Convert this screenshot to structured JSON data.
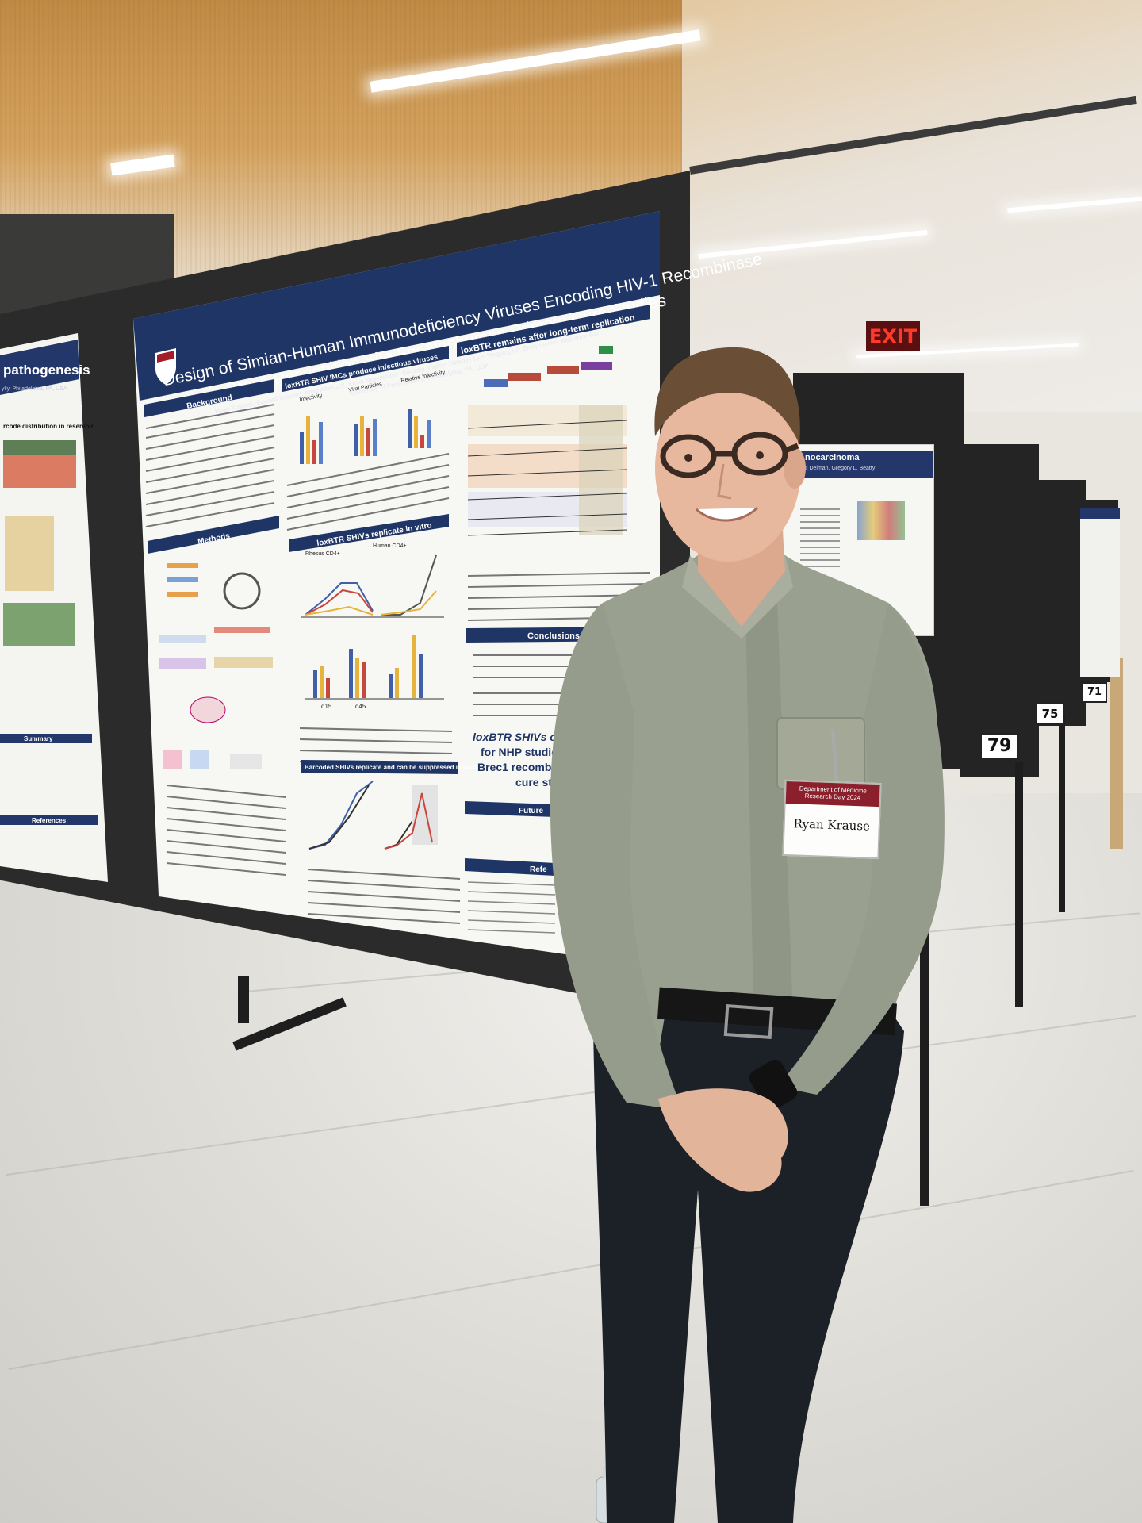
{
  "scene": {
    "exit_sign": "EXIT",
    "board_numbers": [
      "79",
      "75",
      "71"
    ]
  },
  "main_poster": {
    "title_line1": "Design of Simian-Human Immunodeficiency Viruses Encoding HIV-1 Recombinase",
    "title_line2": "Brec1 Recognition Site For Nonhuman Primate Cure Studies",
    "authors": "Ryan Krause¹, Edward Kreider¹, Amie Albertus¹, Kevin Newcombe¹, Suvadip Mallick¹, Weimin Liu¹, Yingying Li¹, Emily Lewis¹, Katharine Bar¹",
    "affiliation": "¹University of Pennsylvania, Philadelphia, PA, USA",
    "sections": {
      "background": "Background",
      "methods": "Methods",
      "imcs": "loxBTR SHIV IMCs produce infectious viruses",
      "replicate": "loxBTR SHIVs replicate in vitro",
      "barcoded": "Barcoded SHIVs replicate and can be suppressed in vitro",
      "long_term": "loxBTR remains after long-term replication",
      "conclusions": "Conclusions",
      "future": "Future",
      "references": "Refe"
    },
    "panel_labels": {
      "infectivity": "Infectivity",
      "viral_particles": "Viral Particles",
      "relative_infectivity": "Relative Infectivity",
      "rhesus": "Rhesus CD4+",
      "human": "Human CD4+",
      "d15": "d15",
      "d45": "d45"
    },
    "highlight_text": "loxBTR SHIVs off",
    "highlight_line2": "for NHP studie",
    "highlight_line3": "Brec1 recombin",
    "highlight_line4": "cure st"
  },
  "left_poster": {
    "title": "pathogenesis",
    "subtitle_line": "rcode distribution in reservoir",
    "affiliation": "ylly, Philadelphia, PA, USA",
    "summary": "Summary",
    "references": "References"
  },
  "right_poster": {
    "title": "nocarcinoma",
    "authors": "s Delman, Gregory L. Beatty"
  },
  "badge": {
    "organization": "Department of Medicine Research Day 2024",
    "name": "Ryan Krause"
  },
  "colors": {
    "poster_navy": "#1f3566",
    "badge_maroon": "#8b1f2b",
    "shirt": "#9aa08f",
    "pants": "#1c2027"
  }
}
